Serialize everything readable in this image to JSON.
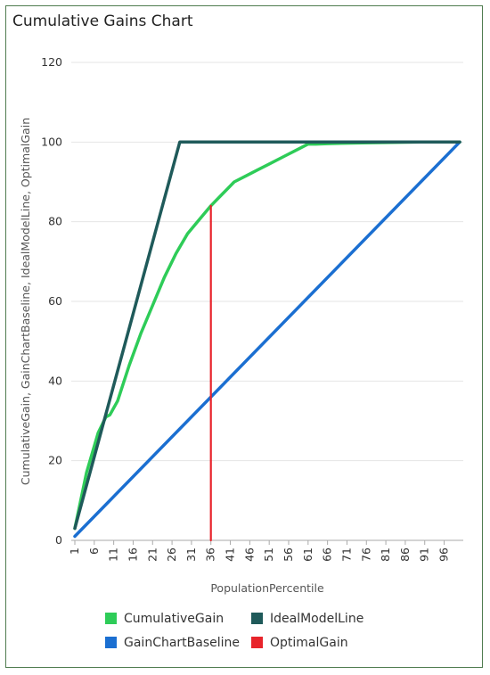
{
  "chart_data": {
    "type": "line",
    "title": "Cumulative Gains Chart",
    "xlabel": "PopulationPercentile",
    "ylabel": "CumulativeGain, GainChartBaseline, IdealModelLine, OptimalGain",
    "xlim": [
      1,
      100
    ],
    "ylim": [
      0,
      120
    ],
    "yticks": [
      0,
      20,
      40,
      60,
      80,
      100,
      120
    ],
    "xticks": [
      1,
      6,
      11,
      16,
      21,
      26,
      31,
      36,
      41,
      46,
      51,
      56,
      61,
      66,
      71,
      76,
      81,
      86,
      91,
      96
    ],
    "grid": "horizontal",
    "legend_position": "bottom",
    "series": [
      {
        "name": "CumulativeGain",
        "color": "#2ecc58",
        "x": [
          1,
          4,
          7,
          9,
          10,
          12,
          15,
          18,
          21,
          24,
          27,
          30,
          33,
          36,
          39,
          42,
          45,
          48,
          51,
          55,
          58,
          61,
          63,
          66,
          75,
          90,
          100
        ],
        "y": [
          3,
          17,
          27,
          31,
          31.5,
          35,
          44,
          52,
          59,
          66,
          72,
          77,
          80.5,
          84,
          87,
          90,
          91.5,
          93,
          94.5,
          96.5,
          98,
          99.5,
          99.5,
          99.6,
          99.8,
          100,
          100
        ]
      },
      {
        "name": "IdealModelLine",
        "color": "#1f5a5a",
        "x": [
          1,
          28,
          100
        ],
        "y": [
          3,
          100,
          100
        ]
      },
      {
        "name": "GainChartBaseline",
        "color": "#1b6fd1",
        "x": [
          1,
          100
        ],
        "y": [
          1,
          100
        ]
      },
      {
        "name": "OptimalGain",
        "color": "#e8242b",
        "x": [
          36,
          36
        ],
        "y": [
          0,
          84
        ]
      }
    ]
  }
}
